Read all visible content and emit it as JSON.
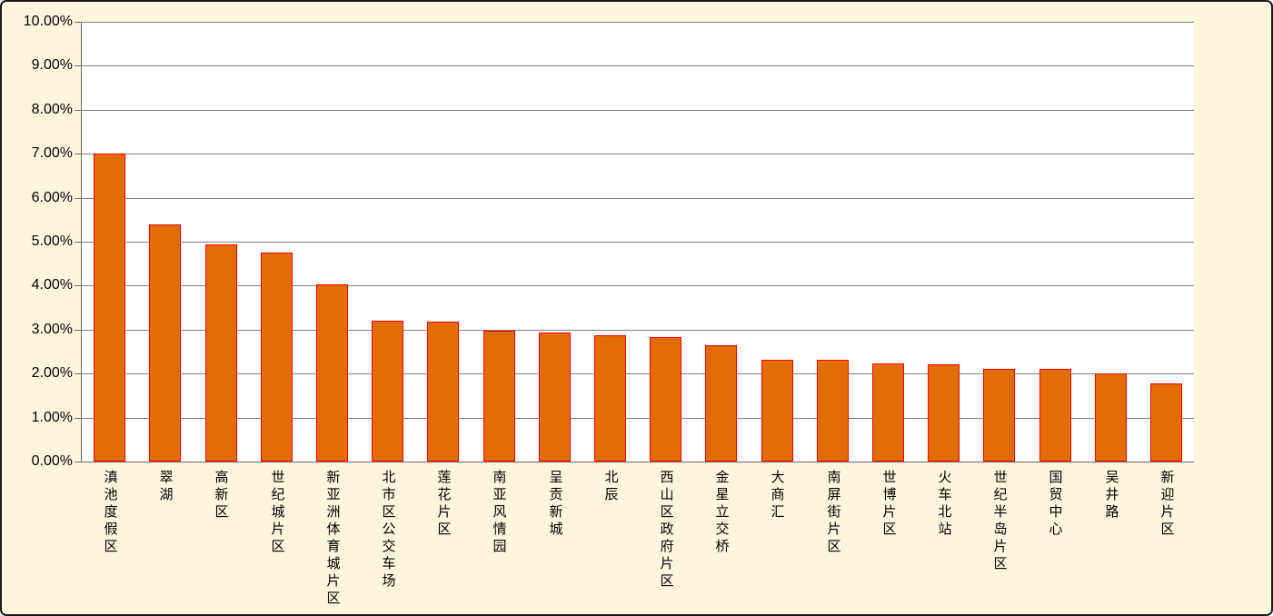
{
  "chart_data": {
    "type": "bar",
    "title": "",
    "xlabel": "",
    "ylabel": "",
    "categories": [
      "滇池度假区",
      "翠湖",
      "高新区",
      "世纪城片区",
      "新亚洲体育城片区",
      "北市区公交车场",
      "莲花片区",
      "南亚风情园",
      "呈贡新城",
      "北辰",
      "西山区政府片区",
      "金星立交桥",
      "大商汇",
      "南屏街片区",
      "世博片区",
      "火车北站",
      "世纪半岛片区",
      "国贸中心",
      "吴井路",
      "新迎片区"
    ],
    "values": [
      7.0,
      5.4,
      4.93,
      4.75,
      4.03,
      3.21,
      3.18,
      2.98,
      2.94,
      2.88,
      2.84,
      2.64,
      2.32,
      2.31,
      2.23,
      2.21,
      2.11,
      2.1,
      2.0,
      1.78
    ],
    "value_format": "percent",
    "y_tick_labels": [
      "10.00%",
      "9.00%",
      "8.00%",
      "7.00%",
      "6.00%",
      "5.00%",
      "4.00%",
      "3.00%",
      "2.00%",
      "1.00%",
      "0.00%"
    ],
    "ylim": [
      0,
      10
    ],
    "grid": "horizontal",
    "legend": "none",
    "colors": {
      "bar_fill": "#E26B0A",
      "bar_border": "#FF0000",
      "chart_background": "#FDF5DC",
      "plot_background": "#FFFFFF",
      "gridline": "#808080",
      "axis_line": "#6A6A6A",
      "text": "#000000",
      "outer_border": "#1B1B1B"
    }
  }
}
